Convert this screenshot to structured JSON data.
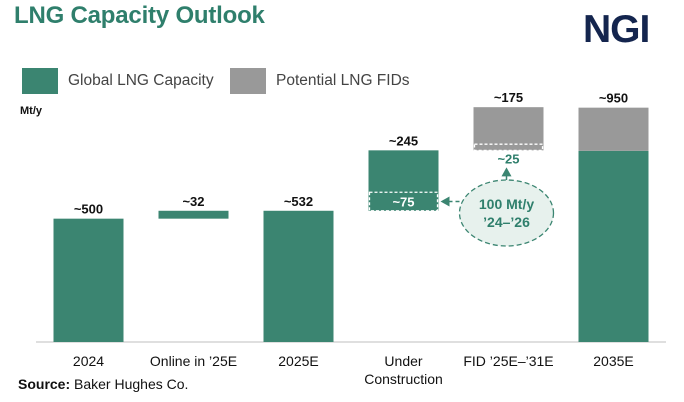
{
  "title": "LNG Capacity Outlook",
  "logo": "NGI",
  "unit_label": "Mt/y",
  "source": {
    "label": "Source:",
    "text": " Baker Hughes Co."
  },
  "colors": {
    "global": "#3b8571",
    "potential": "#999999",
    "title": "#2f7f6c",
    "callout_text": "#2f7f6c",
    "logo": "#14254e"
  },
  "legend": [
    {
      "label": "Global LNG Capacity",
      "color": "#3b8571"
    },
    {
      "label": "Potential LNG FIDs",
      "color": "#999999"
    }
  ],
  "chart_data": {
    "type": "bar",
    "subtype": "waterfall",
    "ylabel": "Mt/y",
    "ylim": [
      0,
      1200
    ],
    "grid": false,
    "legend_position": "top-left",
    "categories": [
      "2024",
      "Online in '25E",
      "2025E",
      "Under Construction",
      "FID '25E–'31E",
      "2035E"
    ],
    "category_lines": [
      [
        "2024"
      ],
      [
        "Online in ’25E"
      ],
      [
        "2025E"
      ],
      [
        "Under",
        "Construction"
      ],
      [
        "FID ’25E–’31E"
      ],
      [
        "2035E"
      ]
    ],
    "bars": [
      {
        "category": "2024",
        "base": 0,
        "value": 500,
        "series": "Global LNG Capacity",
        "label": "~500"
      },
      {
        "category": "Online in '25E",
        "base": 500,
        "value": 32,
        "series": "Global LNG Capacity",
        "label": "~32"
      },
      {
        "category": "2025E",
        "base": 0,
        "value": 532,
        "series": "Global LNG Capacity",
        "label": "~532"
      },
      {
        "category": "Under Construction",
        "base": 532,
        "value": 245,
        "series": "Global LNG Capacity",
        "label": "~245",
        "inner": {
          "value": 75,
          "label": "~75"
        }
      },
      {
        "category": "FID '25E–'31E",
        "base": 777,
        "value": 175,
        "series": "Potential LNG FIDs",
        "label": "~175",
        "inner": {
          "value": 25,
          "label": "~25"
        }
      },
      {
        "category": "2035E",
        "base": 0,
        "value": 950,
        "series": "Global LNG Capacity",
        "label": "~950",
        "top_segment": {
          "value": 175,
          "series": "Potential LNG FIDs"
        }
      }
    ],
    "annotation": {
      "lines": [
        "100 Mt/y",
        "’24–’26"
      ]
    }
  }
}
